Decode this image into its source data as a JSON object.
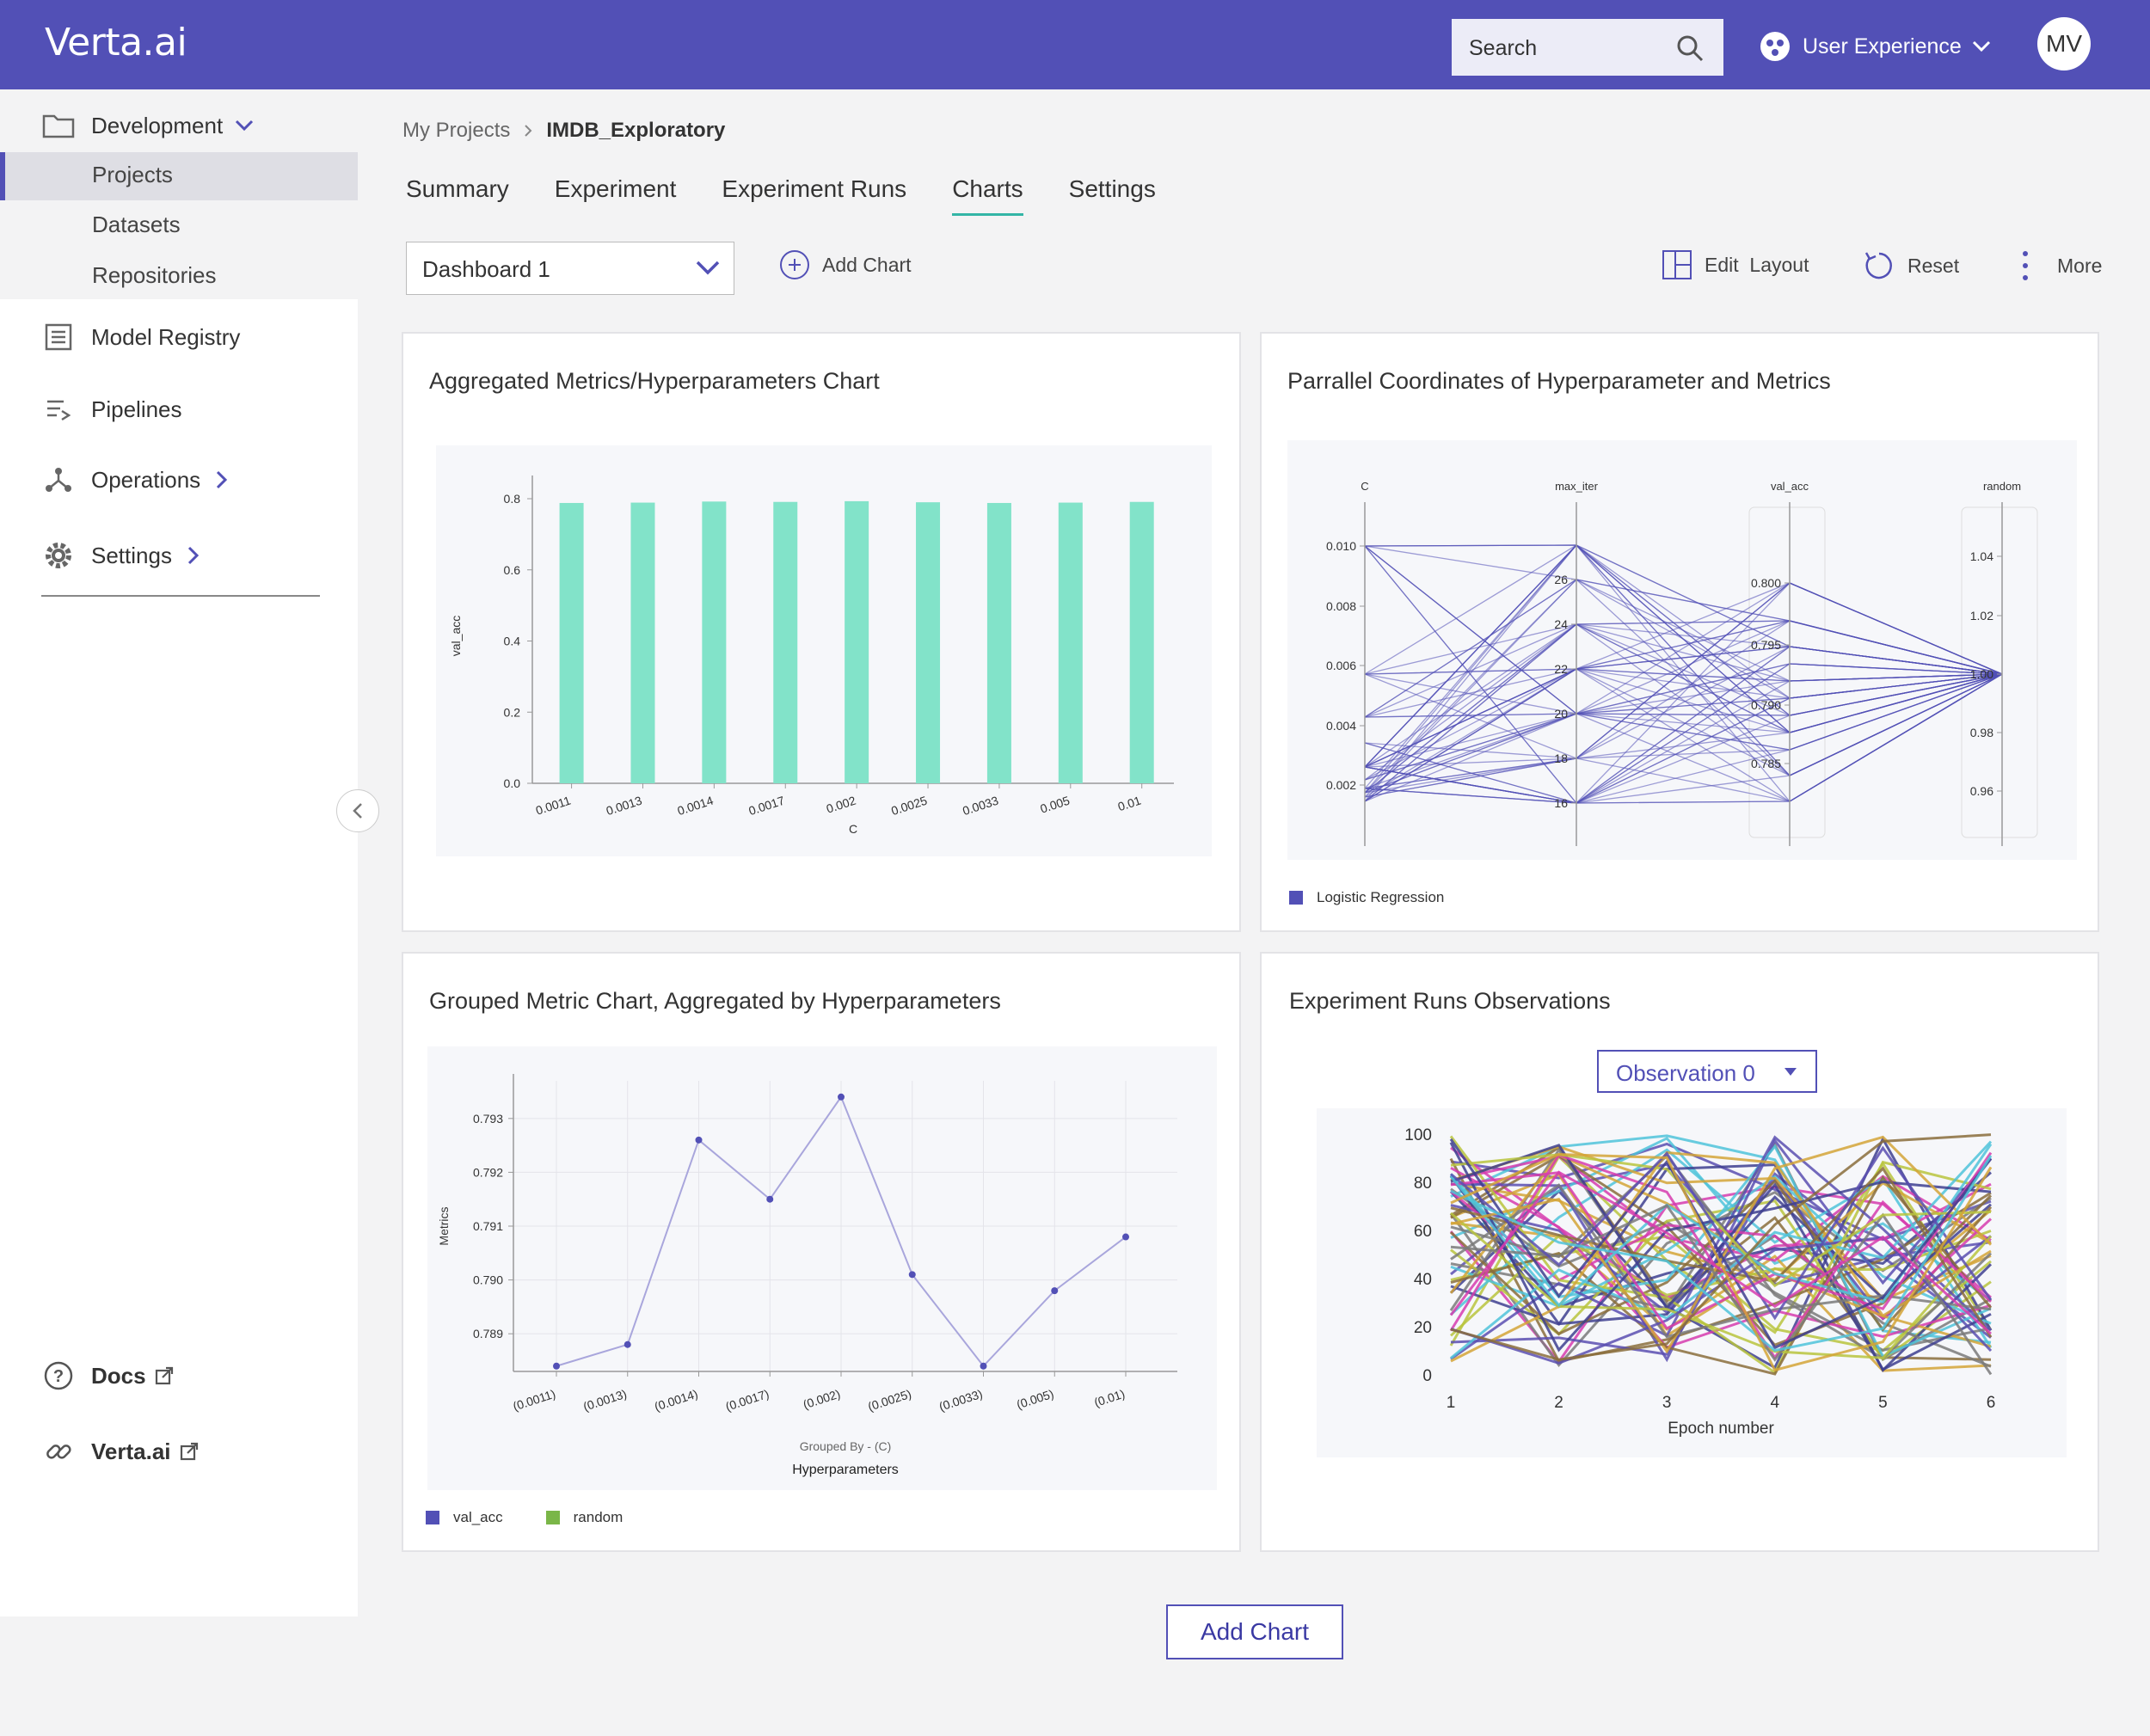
{
  "header": {
    "logo": "Verta.ai",
    "search_label": "Search",
    "workspace_label": "User Experience",
    "avatar_initials": "MV",
    "bg_color": "#5250b6"
  },
  "sidebar": {
    "development": "Development",
    "sub_items": [
      "Projects",
      "Datasets",
      "Repositories"
    ],
    "items": [
      "Model Registry",
      "Pipelines",
      "Operations",
      "Settings"
    ],
    "docs": "Docs",
    "verta_link": "Verta.ai"
  },
  "breadcrumb": {
    "parent": "My Projects",
    "current": "IMDB_Exploratory"
  },
  "tabs": [
    "Summary",
    "Experiment",
    "Experiment Runs",
    "Charts",
    "Settings"
  ],
  "active_tab": "Charts",
  "toolbar": {
    "dashboard": "Dashboard 1",
    "add_chart": "Add Chart",
    "edit_layout": "Edit  Layout",
    "reset": "Reset",
    "more": "More"
  },
  "bottom_button": "Add Chart",
  "cards": {
    "bar_title": "Aggregated Metrics/Hyperparameters Chart",
    "parallel_title": "Parrallel Coordinates of Hyperparameter and Metrics",
    "grouped_title": "Grouped Metric Chart, Aggregated by Hyperparameters",
    "observations_title": "Experiment Runs Observations",
    "observation_select": "Observation 0",
    "parallel_legend": "Logistic Regression",
    "grouped_legend": [
      "val_acc",
      "random"
    ]
  },
  "chart_data": [
    {
      "type": "bar",
      "categories": [
        "0.0011",
        "0.0013",
        "0.0014",
        "0.0017",
        "0.002",
        "0.0025",
        "0.0033",
        "0.005",
        "0.01"
      ],
      "values": [
        0.788,
        0.789,
        0.792,
        0.791,
        0.793,
        0.79,
        0.788,
        0.789,
        0.791
      ],
      "xlabel": "C",
      "ylabel": "val_acc",
      "ylim": [
        0,
        0.8
      ],
      "yticks": [
        "0.0",
        "0.2",
        "0.4",
        "0.6",
        "0.8"
      ],
      "color": "#82e3c9"
    },
    {
      "type": "parallel",
      "axes": [
        {
          "name": "C",
          "ticks": [
            "0.002",
            "0.004",
            "0.006",
            "0.008",
            "0.010"
          ]
        },
        {
          "name": "max_iter",
          "ticks": [
            "16",
            "18",
            "20",
            "22",
            "24",
            "26"
          ]
        },
        {
          "name": "val_acc",
          "ticks": [
            "0.785",
            "0.790",
            "0.795",
            "0.800"
          ]
        },
        {
          "name": "random",
          "ticks": [
            "0.96",
            "0.98",
            "1.00",
            "1.02",
            "1.04"
          ]
        }
      ],
      "legend": "Logistic Regression",
      "color": "#5250b6"
    },
    {
      "type": "line",
      "categories": [
        "(0.0011)",
        "(0.0013)",
        "(0.0014)",
        "(0.0017)",
        "(0.002)",
        "(0.0025)",
        "(0.0033)",
        "(0.005)",
        "(0.01)"
      ],
      "values": [
        0.7884,
        0.7888,
        0.7926,
        0.7915,
        0.7934,
        0.7901,
        0.7884,
        0.7898,
        0.7908
      ],
      "ylabel": "Metrics",
      "xlabel_sub": "Grouped By - (C)",
      "xlabel": "Hyperparameters",
      "yticks": [
        "0.789",
        "0.790",
        "0.791",
        "0.792",
        "0.793"
      ],
      "ylim": [
        0.7883,
        0.7937
      ],
      "color": "#5250b6"
    },
    {
      "type": "line",
      "x": [
        1,
        2,
        3,
        4,
        5,
        6
      ],
      "xticks": [
        "1",
        "2",
        "3",
        "4",
        "5",
        "6"
      ],
      "yticks": [
        "0",
        "20",
        "40",
        "60",
        "80",
        "100"
      ],
      "ylim": [
        0,
        100
      ],
      "xlabel": "Epoch number",
      "series_colors": [
        "#5a4fb0",
        "#d63cae",
        "#4fc3d9",
        "#d4a537",
        "#7a7a7a",
        "#b8c43d",
        "#3e3f8f",
        "#8a6d3b"
      ]
    }
  ]
}
